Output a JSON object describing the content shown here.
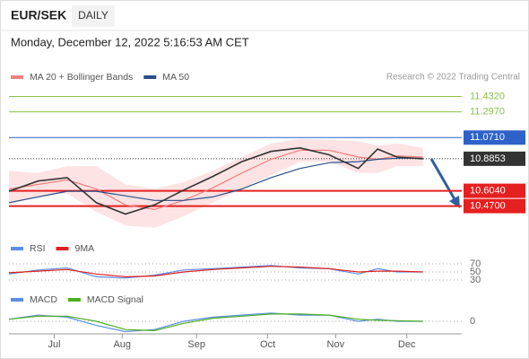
{
  "header": {
    "symbol": "EUR/SEK",
    "timeframe": "DAILY",
    "timestamp": "Monday, December 12, 2022 5:16:53 AM CET",
    "credit": "Research © 2022 Trading Central"
  },
  "chart_data": [
    {
      "type": "line",
      "x": [
        0,
        9,
        18,
        27,
        36,
        45,
        54,
        63,
        72,
        81,
        90,
        99,
        108,
        114,
        120,
        128
      ],
      "xlim": [
        0,
        140
      ],
      "xticks": [
        {
          "value": 14,
          "label": "Jul"
        },
        {
          "value": 35,
          "label": "Aug"
        },
        {
          "value": 58,
          "label": "Sep"
        },
        {
          "value": 80,
          "label": "Oct"
        },
        {
          "value": 101,
          "label": "Nov"
        },
        {
          "value": 123,
          "label": "Dec"
        }
      ],
      "ylim": [
        10.27,
        11.53
      ],
      "price": {
        "color": "#333333",
        "values": [
          10.6,
          10.69,
          10.72,
          10.5,
          10.4,
          10.48,
          10.61,
          10.73,
          10.86,
          10.95,
          10.98,
          10.92,
          10.8,
          10.97,
          10.9,
          10.885
        ]
      },
      "series": [
        {
          "name": "MA 20 + Bollinger Bands",
          "color": "#f08080",
          "band_color": "#fde3e3",
          "values": [
            10.62,
            10.66,
            10.7,
            10.62,
            10.48,
            10.44,
            10.52,
            10.63,
            10.76,
            10.88,
            10.96,
            10.96,
            10.9,
            10.88,
            10.91,
            10.9
          ],
          "upper": [
            10.78,
            10.76,
            10.82,
            10.82,
            10.66,
            10.62,
            10.68,
            10.78,
            10.9,
            11.02,
            11.06,
            11.05,
            11.04,
            11.0,
            11.02,
            10.98
          ],
          "lower": [
            10.48,
            10.56,
            10.58,
            10.42,
            10.3,
            10.28,
            10.38,
            10.5,
            10.62,
            10.74,
            10.86,
            10.86,
            10.76,
            10.76,
            10.82,
            10.82
          ]
        },
        {
          "name": "MA 50",
          "color": "#2b4f8c",
          "values": [
            10.5,
            10.55,
            10.6,
            10.6,
            10.56,
            10.52,
            10.52,
            10.55,
            10.62,
            10.72,
            10.8,
            10.85,
            10.86,
            10.88,
            10.89,
            10.89
          ]
        }
      ],
      "levels": [
        {
          "value": 11.432,
          "label": "11.4320",
          "color": "#8bc34a",
          "style": "text"
        },
        {
          "value": 11.297,
          "label": "11.2970",
          "color": "#8bc34a",
          "style": "text"
        },
        {
          "value": 11.071,
          "label": "11.0710",
          "color": "#2f62c8",
          "style": "box"
        },
        {
          "value": 10.8853,
          "label": "10.8853",
          "color": "#333333",
          "style": "dotted"
        },
        {
          "value": 10.604,
          "label": "10.6040",
          "color": "#e52020",
          "style": "box"
        },
        {
          "value": 10.47,
          "label": "10.4700",
          "color": "#e52020",
          "style": "box"
        }
      ]
    },
    {
      "type": "line",
      "ylim": [
        10,
        90
      ],
      "yticks": [
        70,
        50,
        30
      ],
      "grid": true,
      "series": [
        {
          "name": "RSI",
          "color": "#5b8ee6",
          "values": [
            45,
            55,
            60,
            38,
            35,
            42,
            55,
            58,
            62,
            66,
            60,
            58,
            45,
            58,
            50,
            50
          ]
        },
        {
          "name": "9MA",
          "color": "#e02020",
          "values": [
            48,
            52,
            56,
            45,
            38,
            40,
            50,
            56,
            60,
            64,
            62,
            58,
            50,
            52,
            52,
            50
          ]
        }
      ]
    },
    {
      "type": "line",
      "ylim": [
        -0.1,
        0.1
      ],
      "yticks": [
        0
      ],
      "grid": true,
      "series": [
        {
          "name": "MACD",
          "color": "#5b8ee6",
          "values": [
            0.01,
            0.03,
            0.02,
            -0.02,
            -0.05,
            -0.04,
            0.0,
            0.02,
            0.03,
            0.04,
            0.03,
            0.03,
            0.0,
            0.01,
            0.0,
            0.0
          ]
        },
        {
          "name": "MACD Signal",
          "color": "#4caf20",
          "values": [
            0.01,
            0.025,
            0.025,
            0.0,
            -0.04,
            -0.045,
            -0.01,
            0.015,
            0.025,
            0.035,
            0.035,
            0.03,
            0.01,
            0.005,
            0.003,
            0.0
          ]
        }
      ]
    }
  ]
}
